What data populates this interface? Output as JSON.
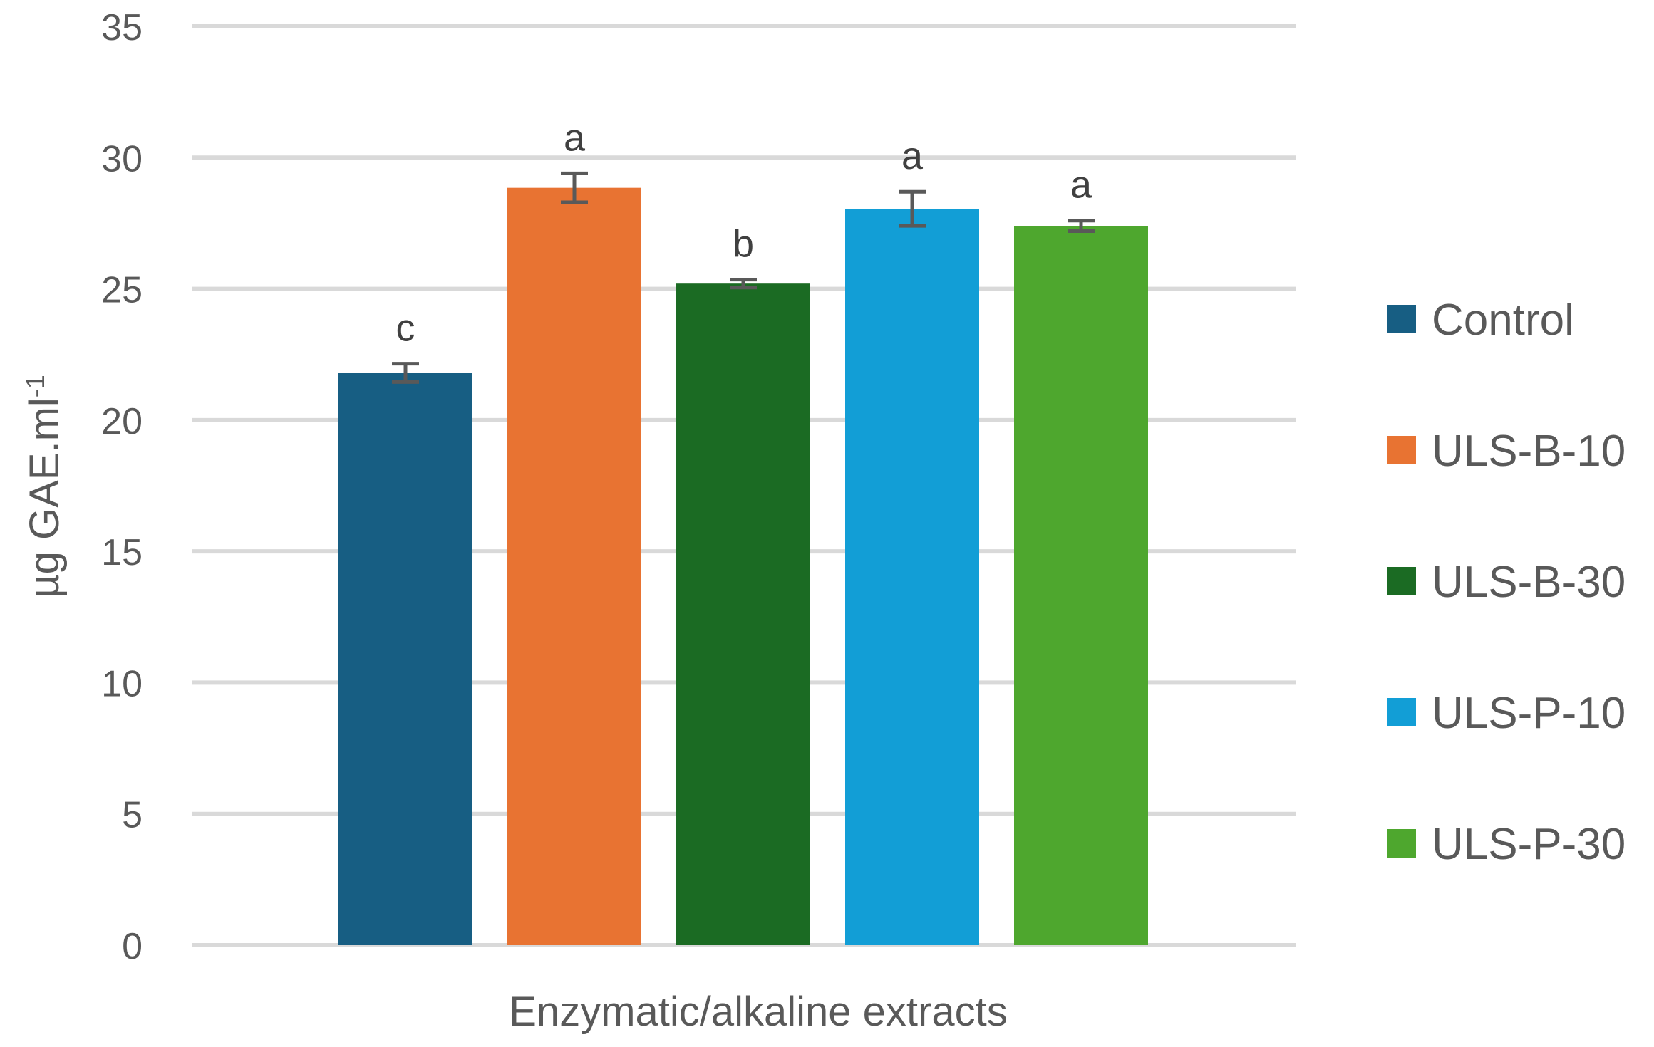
{
  "chart_data": {
    "type": "bar",
    "title": "",
    "xlabel": "Enzymatic/alkaline extracts",
    "ylabel": {
      "main": "µg GAE.ml",
      "superscript": "-1"
    },
    "ylim": [
      0,
      35
    ],
    "yticks": [
      "0",
      "5",
      "10",
      "15",
      "20",
      "25",
      "30",
      "35"
    ],
    "grid": true,
    "legend_position": "right",
    "series": [
      {
        "name": "Control",
        "value": 21.8,
        "error": 0.35,
        "significance": "c",
        "color": "#175E83"
      },
      {
        "name": "ULS-B-10",
        "value": 28.85,
        "error": 0.55,
        "significance": "a",
        "color": "#E87332"
      },
      {
        "name": "ULS-B-30",
        "value": 25.2,
        "error": 0.15,
        "significance": "b",
        "color": "#1B6B23"
      },
      {
        "name": "ULS-P-10",
        "value": 28.05,
        "error": 0.65,
        "significance": "a",
        "color": "#129ED6"
      },
      {
        "name": "ULS-P-30",
        "value": 27.4,
        "error": 0.2,
        "significance": "a",
        "color": "#4EA72E"
      }
    ]
  }
}
